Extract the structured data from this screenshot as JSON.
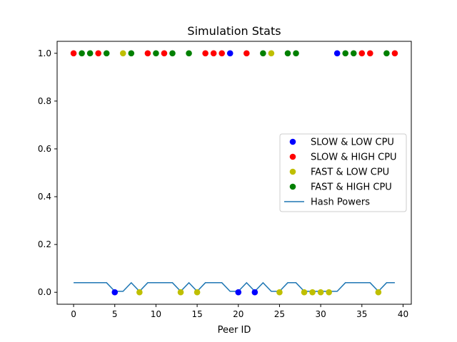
{
  "chart_data": {
    "type": "scatter",
    "title": "Simulation Stats",
    "xlabel": "Peer ID",
    "ylabel": "",
    "xlim": [
      -2,
      41
    ],
    "ylim": [
      -0.05,
      1.05
    ],
    "xticks": [
      0,
      5,
      10,
      15,
      20,
      25,
      30,
      35,
      40
    ],
    "yticks": [
      0.0,
      0.2,
      0.4,
      0.6,
      0.8,
      1.0
    ],
    "xtick_labels": [
      "0",
      "5",
      "10",
      "15",
      "20",
      "25",
      "30",
      "35",
      "40"
    ],
    "ytick_labels": [
      "0.0",
      "0.2",
      "0.4",
      "0.6",
      "0.8",
      "1.0"
    ],
    "grid": false,
    "legend_position": "center-right",
    "series": [
      {
        "name": "SLOW & LOW CPU",
        "kind": "scatter",
        "color": "#0000ff",
        "x": [
          5,
          19,
          20,
          22,
          32
        ],
        "y": [
          0,
          1,
          0,
          0,
          1
        ]
      },
      {
        "name": "SLOW & HIGH CPU",
        "kind": "scatter",
        "color": "#ff0000",
        "x": [
          0,
          3,
          9,
          11,
          16,
          17,
          18,
          21,
          35,
          36,
          39
        ],
        "y": [
          1,
          1,
          1,
          1,
          1,
          1,
          1,
          1,
          1,
          1,
          1
        ]
      },
      {
        "name": "FAST & LOW CPU",
        "kind": "scatter",
        "color": "#bfbf00",
        "x": [
          6,
          8,
          13,
          15,
          24,
          25,
          28,
          29,
          30,
          31,
          37
        ],
        "y": [
          1,
          0,
          0,
          0,
          1,
          0,
          0,
          0,
          0,
          0,
          0
        ]
      },
      {
        "name": "FAST & HIGH CPU",
        "kind": "scatter",
        "color": "#008000",
        "x": [
          1,
          2,
          4,
          7,
          10,
          12,
          14,
          23,
          26,
          27,
          33,
          34,
          38
        ],
        "y": [
          1,
          1,
          1,
          1,
          1,
          1,
          1,
          1,
          1,
          1,
          1,
          1,
          1
        ]
      },
      {
        "name": "Hash Powers",
        "kind": "line",
        "color": "#1f77b4",
        "x": [
          0,
          1,
          2,
          3,
          4,
          5,
          6,
          7,
          8,
          9,
          10,
          11,
          12,
          13,
          14,
          15,
          16,
          17,
          18,
          19,
          20,
          21,
          22,
          23,
          24,
          25,
          26,
          27,
          28,
          29,
          30,
          31,
          32,
          33,
          34,
          35,
          36,
          37,
          38,
          39
        ],
        "y": [
          0.04,
          0.04,
          0.04,
          0.04,
          0.04,
          0.004,
          0.004,
          0.04,
          0.004,
          0.04,
          0.04,
          0.04,
          0.04,
          0.004,
          0.04,
          0.004,
          0.04,
          0.04,
          0.04,
          0.004,
          0.004,
          0.04,
          0.004,
          0.04,
          0.004,
          0.004,
          0.04,
          0.04,
          0.004,
          0.004,
          0.004,
          0.004,
          0.004,
          0.04,
          0.04,
          0.04,
          0.04,
          0.004,
          0.04,
          0.04
        ]
      }
    ]
  }
}
